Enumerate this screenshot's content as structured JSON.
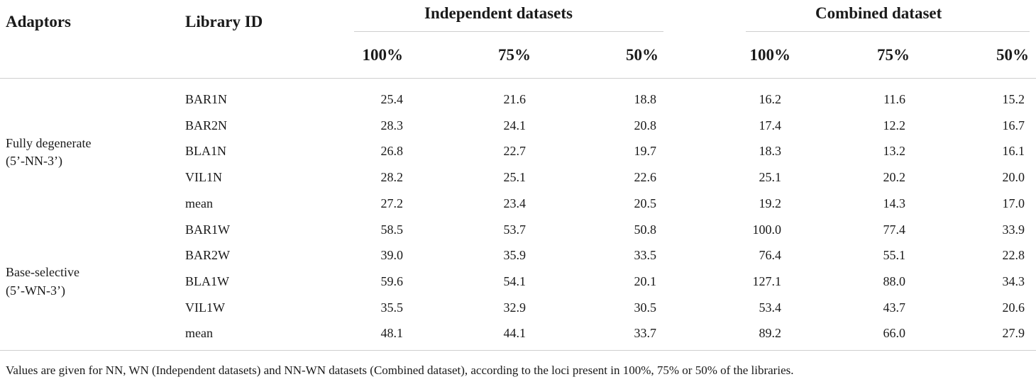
{
  "header": {
    "adaptors": "Adaptors",
    "library_id": "Library ID",
    "group_independent": "Independent datasets",
    "group_combined": "Combined dataset",
    "sub": [
      "100%",
      "75%",
      "50%",
      "100%",
      "75%",
      "50%"
    ]
  },
  "groups": [
    {
      "line1": "Fully degenerate",
      "line2": "(5’-NN-3’)"
    },
    {
      "line1": "Base-selective",
      "line2": "(5’-WN-3’)"
    }
  ],
  "rows": [
    {
      "id": "BAR1N",
      "values": [
        "25.4",
        "21.6",
        "18.8",
        "16.2",
        "11.6",
        "15.2"
      ]
    },
    {
      "id": "BAR2N",
      "values": [
        "28.3",
        "24.1",
        "20.8",
        "17.4",
        "12.2",
        "16.7"
      ]
    },
    {
      "id": "BLA1N",
      "values": [
        "26.8",
        "22.7",
        "19.7",
        "18.3",
        "13.2",
        "16.1"
      ]
    },
    {
      "id": "VIL1N",
      "values": [
        "28.2",
        "25.1",
        "22.6",
        "25.1",
        "20.2",
        "20.0"
      ]
    },
    {
      "id": "mean",
      "values": [
        "27.2",
        "23.4",
        "20.5",
        "19.2",
        "14.3",
        "17.0"
      ]
    },
    {
      "id": "BAR1W",
      "values": [
        "58.5",
        "53.7",
        "50.8",
        "100.0",
        "77.4",
        "33.9"
      ]
    },
    {
      "id": "BAR2W",
      "values": [
        "39.0",
        "35.9",
        "33.5",
        "76.4",
        "55.1",
        "22.8"
      ]
    },
    {
      "id": "BLA1W",
      "values": [
        "59.6",
        "54.1",
        "20.1",
        "127.1",
        "88.0",
        "34.3"
      ]
    },
    {
      "id": "VIL1W",
      "values": [
        "35.5",
        "32.9",
        "30.5",
        "53.4",
        "43.7",
        "20.6"
      ]
    },
    {
      "id": "mean",
      "values": [
        "48.1",
        "44.1",
        "33.7",
        "89.2",
        "66.0",
        "27.9"
      ]
    }
  ],
  "footnote": "Values are given for NN, WN (Independent datasets) and NN-WN datasets (Combined dataset), according to the loci present in 100%, 75% or 50% of the libraries."
}
